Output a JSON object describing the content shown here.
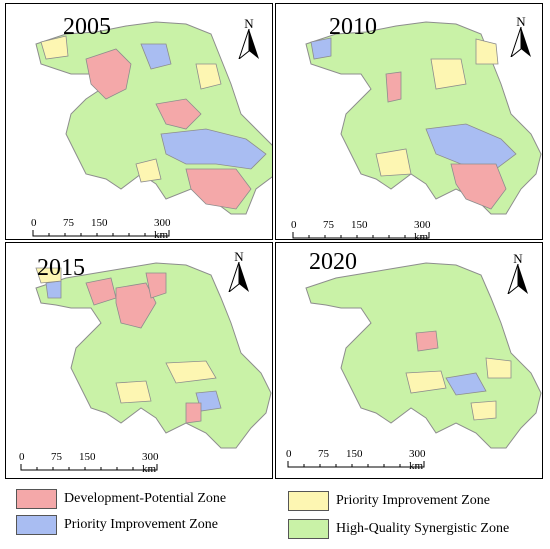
{
  "colors": {
    "development_potential": "#f4a8a9",
    "priority_improvement_blue": "#a9bdf2",
    "priority_improvement_yellow": "#fdf6b2",
    "high_quality": "#c9f2a7",
    "border": "#8d8d8d"
  },
  "panels": [
    {
      "year": "2005"
    },
    {
      "year": "2010"
    },
    {
      "year": "2015"
    },
    {
      "year": "2020"
    }
  ],
  "north_label": "N",
  "scale_ticks": [
    "0",
    "75",
    "150",
    "300 km"
  ],
  "legend": [
    {
      "label": "Development-Potential Zone",
      "color_key": "development_potential"
    },
    {
      "label": "Priority Improvement Zone",
      "color_key": "priority_improvement_yellow"
    },
    {
      "label": "Priority Improvement Zone",
      "color_key": "priority_improvement_blue"
    },
    {
      "label": "High-Quality Synergistic Zone",
      "color_key": "high_quality"
    }
  ]
}
